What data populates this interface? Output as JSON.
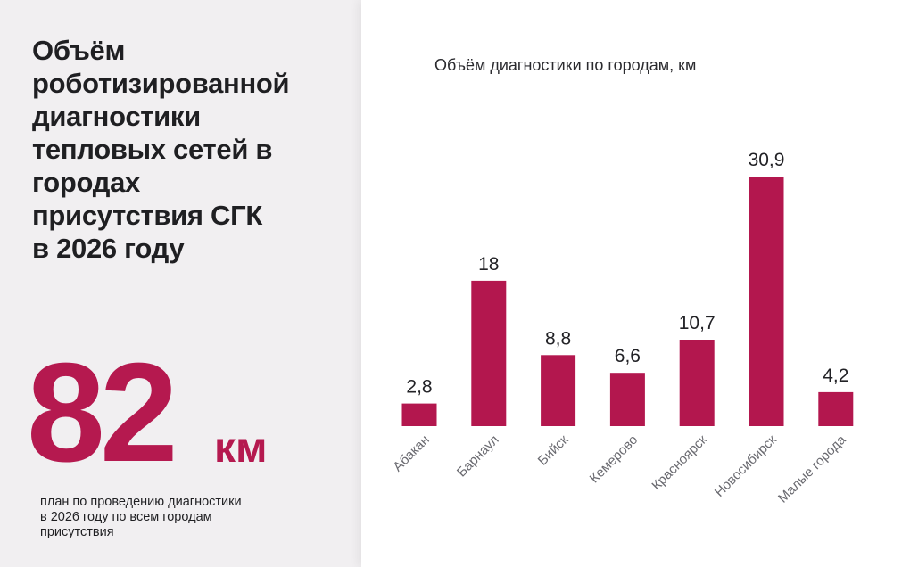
{
  "headline": {
    "lines": [
      "Объём",
      "роботизированной",
      "диагностики",
      "тепловых сетей в",
      "городах",
      "присутствия СГК",
      "в 2026 году"
    ]
  },
  "total": {
    "value": "82",
    "unit": "км"
  },
  "plan_note": {
    "lines": [
      "план по проведению диагностики",
      "в 2026 году по всем городам",
      "присутствия"
    ]
  },
  "colors": {
    "accent": "#b5194f",
    "bar": "#b3174e",
    "background_left": "#f1eff1",
    "background_chart": "#ffffff"
  },
  "chart_data": {
    "type": "bar",
    "title": "Объём диагностики по городам, км",
    "categories": [
      "Абакан",
      "Барнаул",
      "Бийск",
      "Кемерово",
      "Красноярск",
      "Новосибирск",
      "Малые города"
    ],
    "values": [
      2.8,
      18,
      8.8,
      6.6,
      10.7,
      30.9,
      4.2
    ],
    "value_labels": [
      "2,8",
      "18",
      "8,8",
      "6,6",
      "10,7",
      "30,9",
      "4,2"
    ],
    "xlabel": "",
    "ylabel": "",
    "ylim": [
      0,
      30.9
    ],
    "grid": false,
    "legend": "none",
    "tick_label_rotation": "diagonal"
  }
}
